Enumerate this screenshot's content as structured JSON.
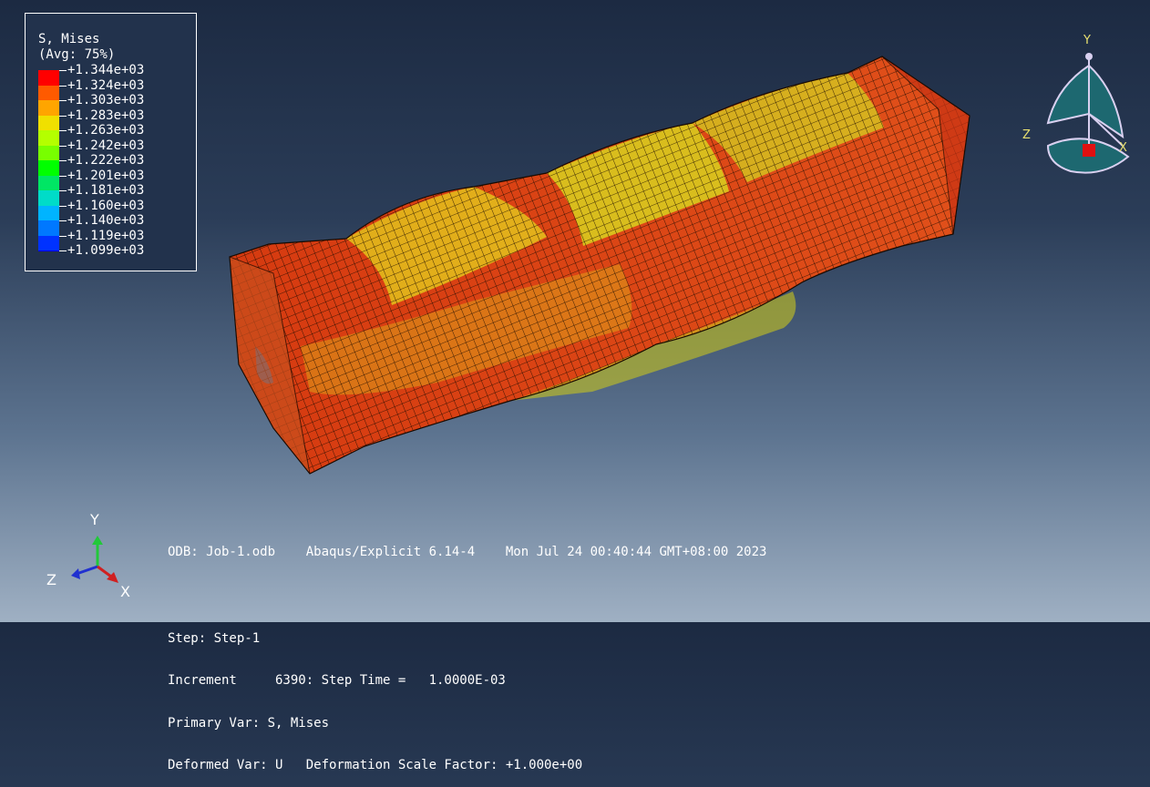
{
  "legend": {
    "title": "S, Mises",
    "subtitle": "(Avg: 75%)",
    "entries": [
      {
        "label": "+1.344e+03",
        "color": "#ff0000"
      },
      {
        "label": "+1.324e+03",
        "color": "#ff5a00"
      },
      {
        "label": "+1.303e+03",
        "color": "#ffa500"
      },
      {
        "label": "+1.283e+03",
        "color": "#f0e000"
      },
      {
        "label": "+1.263e+03",
        "color": "#b4ff00"
      },
      {
        "label": "+1.242e+03",
        "color": "#78ff00"
      },
      {
        "label": "+1.222e+03",
        "color": "#00ff00"
      },
      {
        "label": "+1.201e+03",
        "color": "#00e664"
      },
      {
        "label": "+1.181e+03",
        "color": "#00dcc8"
      },
      {
        "label": "+1.160e+03",
        "color": "#00b4ff"
      },
      {
        "label": "+1.140e+03",
        "color": "#0078ff"
      },
      {
        "label": "+1.119e+03",
        "color": "#0032ff"
      },
      {
        "label": "+1.099e+03",
        "color": "#0000ff"
      }
    ]
  },
  "info": {
    "line1": "ODB: Job-1.odb    Abaqus/Explicit 6.14-4    Mon Jul 24 00:40:44 GMT+08:00 2023",
    "line2": "Step: Step-1",
    "line3": "Increment     6390: Step Time =   1.0000E-03",
    "line4": "Primary Var: S, Mises",
    "line5": "Deformed Var: U   Deformation Scale Factor: +1.000e+00"
  },
  "triad": {
    "x": "X",
    "y": "Y",
    "z": "Z"
  },
  "view_cube": {
    "x": "X",
    "y": "Y",
    "z": "Z"
  }
}
